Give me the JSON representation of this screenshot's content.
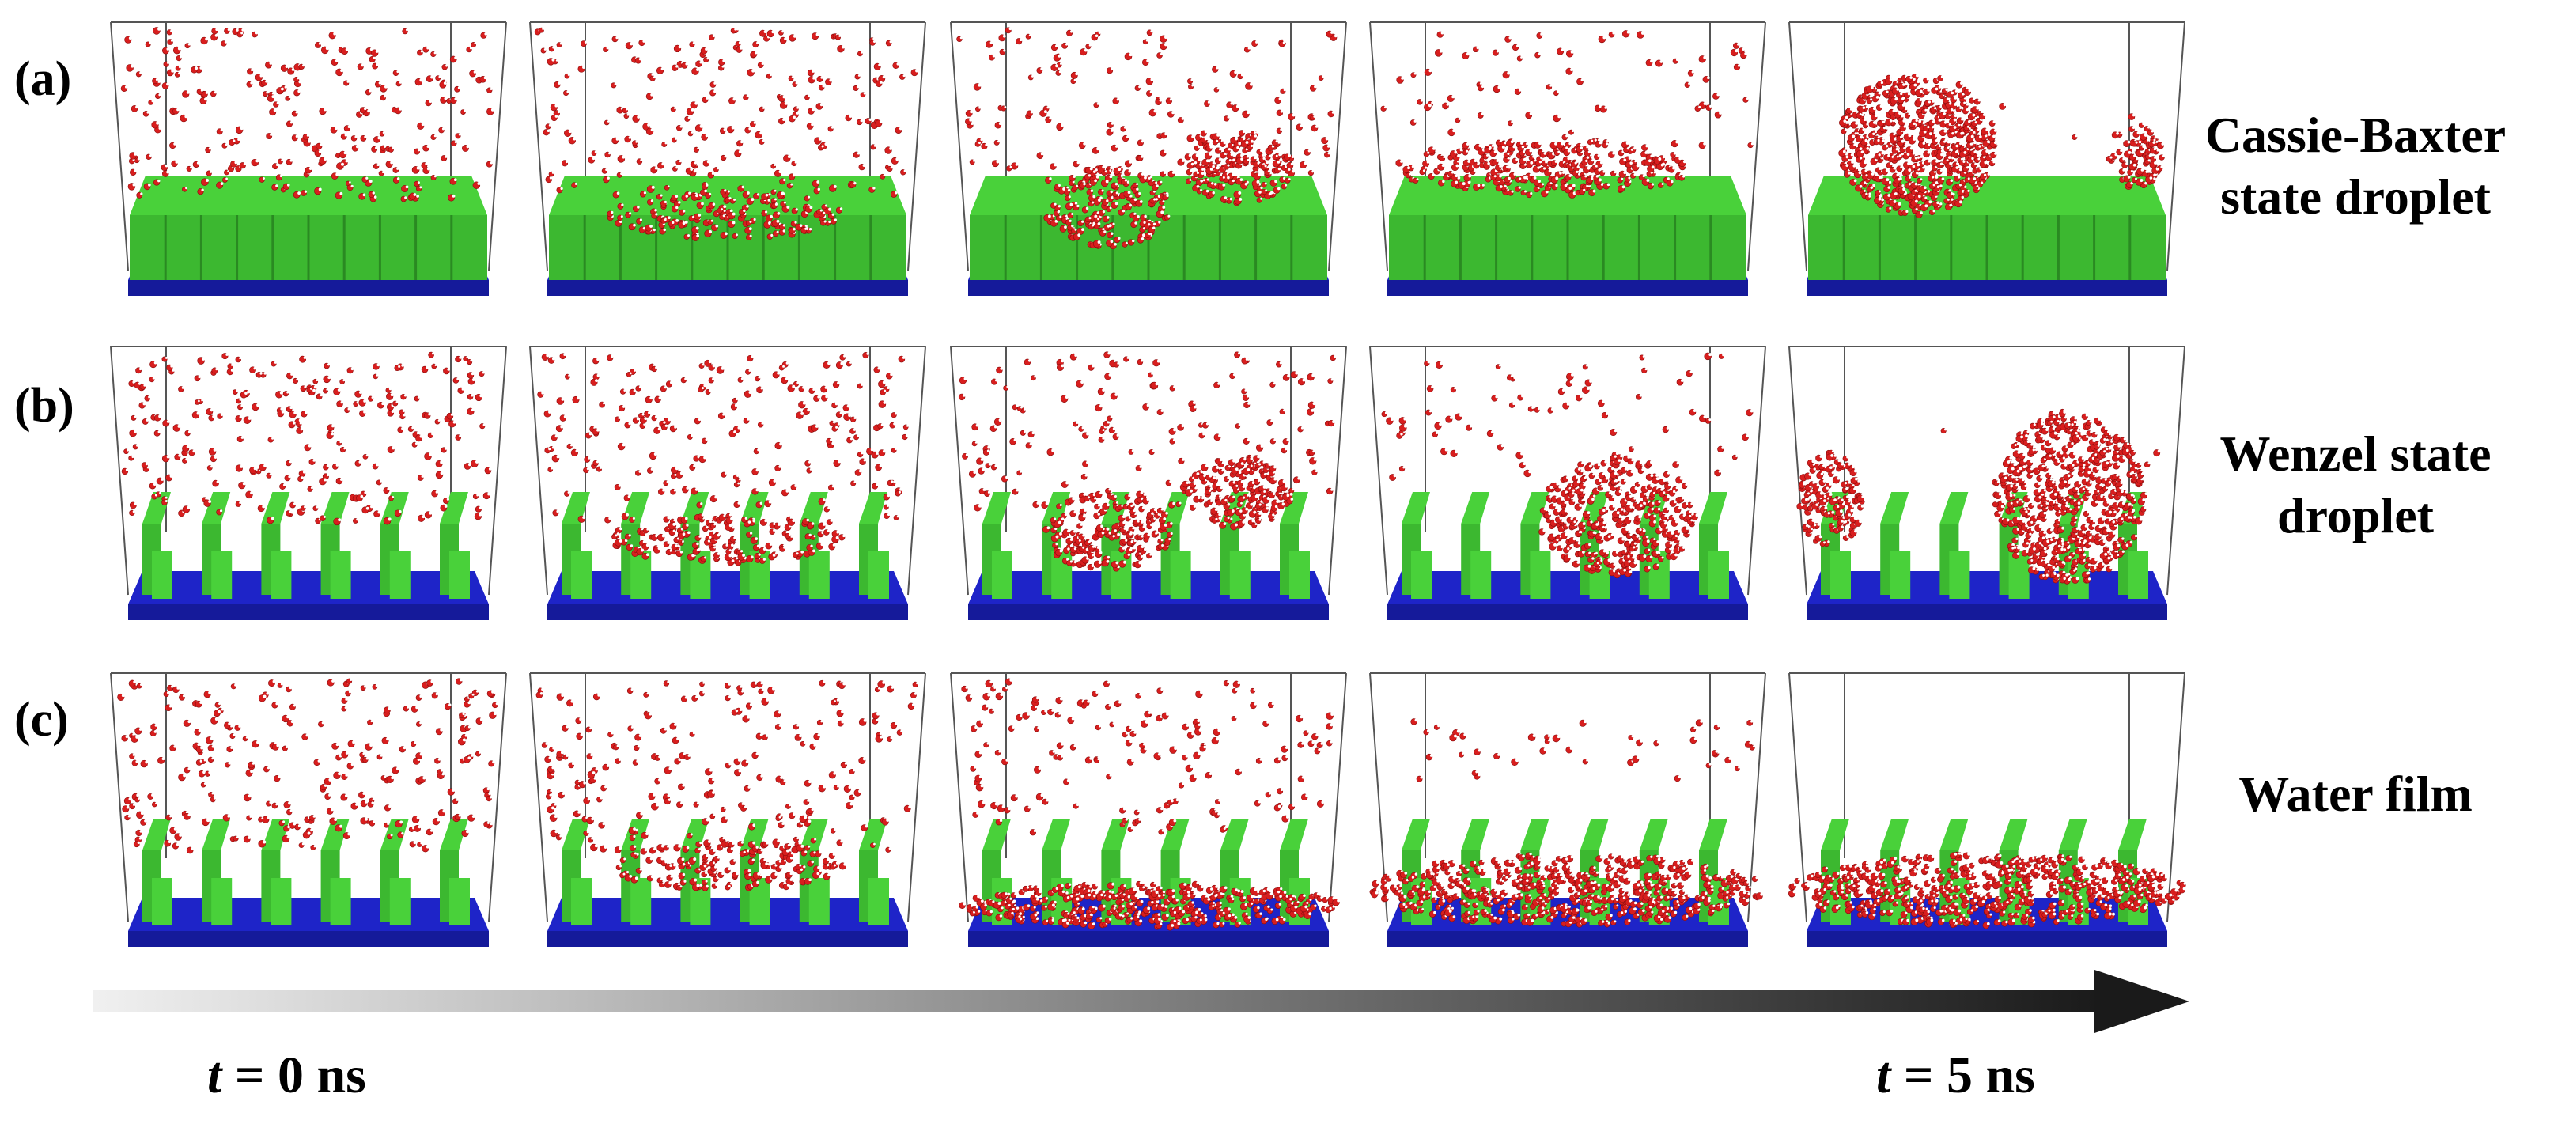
{
  "figure": {
    "rows": [
      {
        "panel_label": "(a)",
        "state_label_line1": "Cassie-Baxter",
        "state_label_line2": "state droplet",
        "substrate": "continuous-pillars",
        "stages": [
          "dispersed",
          "nucleating",
          "coalescing",
          "merged",
          "droplet"
        ]
      },
      {
        "panel_label": "(b)",
        "state_label_line1": "Wenzel state",
        "state_label_line2": "droplet",
        "substrate": "sparse-pillars",
        "stages": [
          "dispersed",
          "nucleating",
          "coalescing",
          "merged",
          "droplet"
        ]
      },
      {
        "panel_label": "(c)",
        "state_label_line1": "Water film",
        "state_label_line2": "",
        "substrate": "sparse-pillars",
        "stages": [
          "dispersed",
          "nucleating",
          "spreading",
          "film",
          "film-final"
        ]
      }
    ],
    "colors": {
      "water_oxygen": "#d81e1e",
      "water_hydrogen": "#ffffff",
      "pillar_green": "#49d13a",
      "base_blue": "#1e24c8",
      "arrow_start": "#f0f0f0",
      "arrow_end": "#1a1a1a"
    },
    "time_axis": {
      "start_italic": "t",
      "start_rest": " = 0 ns",
      "end_italic": "t",
      "end_rest": " = 5 ns"
    }
  }
}
